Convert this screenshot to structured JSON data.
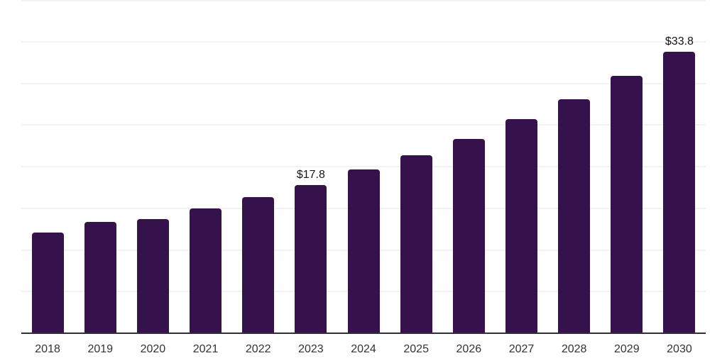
{
  "chart_data": {
    "type": "bar",
    "categories": [
      "2018",
      "2019",
      "2020",
      "2021",
      "2022",
      "2023",
      "2024",
      "2025",
      "2026",
      "2027",
      "2028",
      "2029",
      "2030"
    ],
    "values": [
      12.1,
      13.4,
      13.7,
      15.0,
      16.3,
      17.8,
      19.7,
      21.4,
      23.3,
      25.7,
      28.1,
      30.9,
      33.8
    ],
    "data_labels": [
      {
        "category": "2023",
        "text": "$17.8"
      },
      {
        "category": "2030",
        "text": "$33.8"
      }
    ],
    "ylim": [
      0,
      40
    ],
    "gridline_step": 5,
    "grid": "horizontal-only",
    "legend": "none",
    "y_axis_tick_labels": "none",
    "colors": {
      "bar": "#35124B",
      "axis_line": "#2F2F38",
      "gridline": "#F2F2F4",
      "data_label": "#141414",
      "tick_label": "#333333",
      "background": "#FFFFFF"
    }
  }
}
